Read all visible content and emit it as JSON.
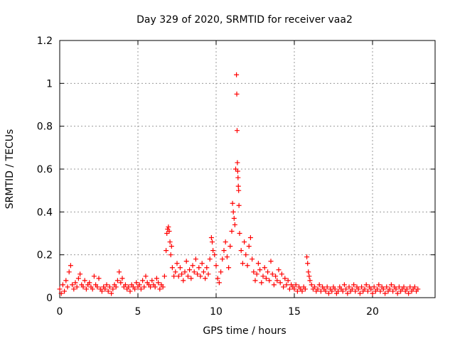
{
  "chart_data": {
    "type": "scatter",
    "title": "Day 329 of 2020, SRMTID for receiver vaa2",
    "xlabel": "GPS time / hours",
    "ylabel": "SRMTID / TECUs",
    "xlim": [
      0,
      24
    ],
    "ylim": [
      0,
      1.2
    ],
    "xticks": [
      0,
      5,
      10,
      15,
      20
    ],
    "xtick_labels": [
      "0",
      "5",
      "10",
      "15",
      "20"
    ],
    "yticks": [
      0,
      0.2,
      0.4,
      0.6,
      0.8,
      1.0,
      1.2
    ],
    "ytick_labels": [
      "0",
      "0.2",
      "0.4",
      "0.6",
      "0.8",
      "1",
      "1.2"
    ],
    "grid": true,
    "marker": "+",
    "marker_color": "#ff0000",
    "series": [
      {
        "name": "SRMTID",
        "points": [
          [
            0.0,
            0.04
          ],
          [
            0.1,
            0.02
          ],
          [
            0.2,
            0.06
          ],
          [
            0.3,
            0.03
          ],
          [
            0.4,
            0.08
          ],
          [
            0.5,
            0.05
          ],
          [
            0.6,
            0.12
          ],
          [
            0.7,
            0.15
          ],
          [
            0.8,
            0.06
          ],
          [
            0.9,
            0.04
          ],
          [
            1.0,
            0.07
          ],
          [
            1.1,
            0.05
          ],
          [
            1.2,
            0.09
          ],
          [
            1.3,
            0.11
          ],
          [
            1.4,
            0.06
          ],
          [
            1.5,
            0.05
          ],
          [
            1.6,
            0.08
          ],
          [
            1.7,
            0.04
          ],
          [
            1.8,
            0.06
          ],
          [
            1.9,
            0.07
          ],
          [
            2.0,
            0.05
          ],
          [
            2.1,
            0.04
          ],
          [
            2.2,
            0.1
          ],
          [
            2.3,
            0.06
          ],
          [
            2.4,
            0.05
          ],
          [
            2.5,
            0.09
          ],
          [
            2.6,
            0.04
          ],
          [
            2.7,
            0.03
          ],
          [
            2.8,
            0.05
          ],
          [
            2.9,
            0.04
          ],
          [
            3.0,
            0.06
          ],
          [
            3.1,
            0.03
          ],
          [
            3.2,
            0.05
          ],
          [
            3.3,
            0.02
          ],
          [
            3.4,
            0.04
          ],
          [
            3.5,
            0.06
          ],
          [
            3.6,
            0.05
          ],
          [
            3.7,
            0.08
          ],
          [
            3.8,
            0.12
          ],
          [
            3.9,
            0.07
          ],
          [
            4.0,
            0.09
          ],
          [
            4.1,
            0.05
          ],
          [
            4.2,
            0.06
          ],
          [
            4.3,
            0.04
          ],
          [
            4.4,
            0.05
          ],
          [
            4.5,
            0.03
          ],
          [
            4.6,
            0.06
          ],
          [
            4.7,
            0.05
          ],
          [
            4.8,
            0.04
          ],
          [
            4.9,
            0.07
          ],
          [
            5.0,
            0.05
          ],
          [
            5.1,
            0.06
          ],
          [
            5.2,
            0.04
          ],
          [
            5.3,
            0.08
          ],
          [
            5.4,
            0.05
          ],
          [
            5.5,
            0.1
          ],
          [
            5.6,
            0.07
          ],
          [
            5.7,
            0.06
          ],
          [
            5.8,
            0.05
          ],
          [
            5.9,
            0.08
          ],
          [
            6.0,
            0.06
          ],
          [
            6.1,
            0.05
          ],
          [
            6.2,
            0.09
          ],
          [
            6.3,
            0.07
          ],
          [
            6.4,
            0.04
          ],
          [
            6.5,
            0.06
          ],
          [
            6.6,
            0.05
          ],
          [
            6.7,
            0.1
          ],
          [
            6.8,
            0.22
          ],
          [
            6.85,
            0.3
          ],
          [
            6.9,
            0.32
          ],
          [
            6.95,
            0.33
          ],
          [
            7.0,
            0.31
          ],
          [
            7.05,
            0.26
          ],
          [
            7.1,
            0.2
          ],
          [
            7.15,
            0.24
          ],
          [
            7.2,
            0.14
          ],
          [
            7.3,
            0.1
          ],
          [
            7.4,
            0.12
          ],
          [
            7.5,
            0.16
          ],
          [
            7.6,
            0.1
          ],
          [
            7.7,
            0.14
          ],
          [
            7.8,
            0.11
          ],
          [
            7.9,
            0.08
          ],
          [
            8.0,
            0.12
          ],
          [
            8.1,
            0.17
          ],
          [
            8.2,
            0.1
          ],
          [
            8.3,
            0.13
          ],
          [
            8.4,
            0.09
          ],
          [
            8.5,
            0.15
          ],
          [
            8.6,
            0.12
          ],
          [
            8.7,
            0.18
          ],
          [
            8.8,
            0.11
          ],
          [
            8.9,
            0.14
          ],
          [
            9.0,
            0.1
          ],
          [
            9.1,
            0.16
          ],
          [
            9.2,
            0.12
          ],
          [
            9.3,
            0.09
          ],
          [
            9.4,
            0.14
          ],
          [
            9.5,
            0.11
          ],
          [
            9.6,
            0.18
          ],
          [
            9.7,
            0.28
          ],
          [
            9.75,
            0.26
          ],
          [
            9.8,
            0.22
          ],
          [
            9.9,
            0.2
          ],
          [
            10.0,
            0.15
          ],
          [
            10.1,
            0.09
          ],
          [
            10.2,
            0.07
          ],
          [
            10.3,
            0.12
          ],
          [
            10.4,
            0.18
          ],
          [
            10.5,
            0.22
          ],
          [
            10.6,
            0.26
          ],
          [
            10.7,
            0.19
          ],
          [
            10.8,
            0.14
          ],
          [
            10.9,
            0.24
          ],
          [
            11.0,
            0.31
          ],
          [
            11.05,
            0.44
          ],
          [
            11.1,
            0.4
          ],
          [
            11.15,
            0.37
          ],
          [
            11.2,
            0.34
          ],
          [
            11.25,
            0.6
          ],
          [
            11.3,
            1.04
          ],
          [
            11.32,
            0.95
          ],
          [
            11.34,
            0.78
          ],
          [
            11.36,
            0.63
          ],
          [
            11.38,
            0.59
          ],
          [
            11.4,
            0.56
          ],
          [
            11.42,
            0.52
          ],
          [
            11.44,
            0.5
          ],
          [
            11.46,
            0.43
          ],
          [
            11.5,
            0.3
          ],
          [
            11.6,
            0.22
          ],
          [
            11.7,
            0.16
          ],
          [
            11.8,
            0.26
          ],
          [
            11.9,
            0.2
          ],
          [
            12.0,
            0.15
          ],
          [
            12.1,
            0.24
          ],
          [
            12.2,
            0.28
          ],
          [
            12.3,
            0.18
          ],
          [
            12.4,
            0.12
          ],
          [
            12.5,
            0.08
          ],
          [
            12.6,
            0.11
          ],
          [
            12.7,
            0.16
          ],
          [
            12.8,
            0.13
          ],
          [
            12.9,
            0.07
          ],
          [
            13.0,
            0.1
          ],
          [
            13.1,
            0.14
          ],
          [
            13.2,
            0.09
          ],
          [
            13.3,
            0.12
          ],
          [
            13.4,
            0.08
          ],
          [
            13.5,
            0.17
          ],
          [
            13.6,
            0.11
          ],
          [
            13.7,
            0.06
          ],
          [
            13.8,
            0.1
          ],
          [
            13.9,
            0.08
          ],
          [
            14.0,
            0.13
          ],
          [
            14.1,
            0.07
          ],
          [
            14.2,
            0.11
          ],
          [
            14.3,
            0.05
          ],
          [
            14.4,
            0.09
          ],
          [
            14.5,
            0.06
          ],
          [
            14.6,
            0.08
          ],
          [
            14.7,
            0.04
          ],
          [
            14.8,
            0.06
          ],
          [
            14.9,
            0.05
          ],
          [
            15.0,
            0.04
          ],
          [
            15.1,
            0.06
          ],
          [
            15.2,
            0.03
          ],
          [
            15.3,
            0.05
          ],
          [
            15.4,
            0.04
          ],
          [
            15.5,
            0.03
          ],
          [
            15.6,
            0.05
          ],
          [
            15.7,
            0.04
          ],
          [
            15.8,
            0.19
          ],
          [
            15.85,
            0.16
          ],
          [
            15.9,
            0.12
          ],
          [
            15.95,
            0.1
          ],
          [
            16.0,
            0.08
          ],
          [
            16.1,
            0.06
          ],
          [
            16.2,
            0.04
          ],
          [
            16.3,
            0.05
          ],
          [
            16.4,
            0.03
          ],
          [
            16.5,
            0.04
          ],
          [
            16.6,
            0.06
          ],
          [
            16.7,
            0.03
          ],
          [
            16.8,
            0.05
          ],
          [
            16.9,
            0.04
          ],
          [
            17.0,
            0.03
          ],
          [
            17.1,
            0.05
          ],
          [
            17.2,
            0.02
          ],
          [
            17.3,
            0.04
          ],
          [
            17.4,
            0.03
          ],
          [
            17.5,
            0.05
          ],
          [
            17.6,
            0.04
          ],
          [
            17.7,
            0.02
          ],
          [
            17.8,
            0.03
          ],
          [
            17.9,
            0.05
          ],
          [
            18.0,
            0.04
          ],
          [
            18.1,
            0.03
          ],
          [
            18.2,
            0.06
          ],
          [
            18.3,
            0.04
          ],
          [
            18.4,
            0.02
          ],
          [
            18.5,
            0.05
          ],
          [
            18.6,
            0.03
          ],
          [
            18.7,
            0.04
          ],
          [
            18.8,
            0.06
          ],
          [
            18.9,
            0.03
          ],
          [
            19.0,
            0.05
          ],
          [
            19.1,
            0.04
          ],
          [
            19.2,
            0.02
          ],
          [
            19.3,
            0.05
          ],
          [
            19.4,
            0.03
          ],
          [
            19.5,
            0.04
          ],
          [
            19.6,
            0.06
          ],
          [
            19.7,
            0.03
          ],
          [
            19.8,
            0.05
          ],
          [
            19.9,
            0.04
          ],
          [
            20.0,
            0.02
          ],
          [
            20.1,
            0.05
          ],
          [
            20.2,
            0.03
          ],
          [
            20.3,
            0.04
          ],
          [
            20.4,
            0.06
          ],
          [
            20.5,
            0.03
          ],
          [
            20.6,
            0.05
          ],
          [
            20.7,
            0.04
          ],
          [
            20.8,
            0.02
          ],
          [
            20.9,
            0.05
          ],
          [
            21.0,
            0.03
          ],
          [
            21.1,
            0.04
          ],
          [
            21.2,
            0.06
          ],
          [
            21.3,
            0.03
          ],
          [
            21.4,
            0.05
          ],
          [
            21.5,
            0.04
          ],
          [
            21.6,
            0.02
          ],
          [
            21.7,
            0.05
          ],
          [
            21.8,
            0.03
          ],
          [
            21.9,
            0.04
          ],
          [
            22.0,
            0.05
          ],
          [
            22.1,
            0.03
          ],
          [
            22.2,
            0.04
          ],
          [
            22.3,
            0.02
          ],
          [
            22.4,
            0.05
          ],
          [
            22.5,
            0.03
          ],
          [
            22.6,
            0.04
          ],
          [
            22.7,
            0.05
          ],
          [
            22.8,
            0.03
          ],
          [
            22.9,
            0.04
          ]
        ]
      }
    ]
  }
}
